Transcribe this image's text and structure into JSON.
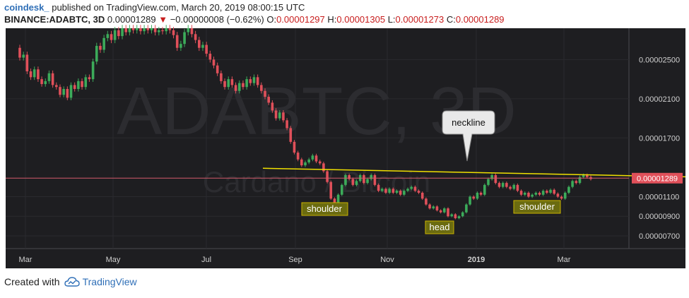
{
  "header": {
    "brand": "coindesk_",
    "published": "published on TradingView.com, March 20, 2019 08:00:15 UTC",
    "symbol": "BINANCE:ADABTC, 3D",
    "last": "0.00001289",
    "change_arrow": "▼",
    "change": "−0.00000008 (−0.62%)",
    "o_label": "O:",
    "o_value": "0.00001297",
    "h_label": "H:",
    "h_value": "0.00001305",
    "l_label": "L:",
    "l_value": "0.00001273",
    "c_label": "C:",
    "c_value": "0.00001289"
  },
  "footer": {
    "created_with": "Created with",
    "tradingview": "TradingView",
    "logo_icon": "cloud-icon"
  },
  "colors": {
    "up": "#3cab5a",
    "down": "#e0505a",
    "neckline": "#f0e000",
    "price_line": "#d45a6a",
    "label_bg": "#6b6b10",
    "label_border": "#c9b300"
  },
  "chart_data": {
    "type": "candlestick",
    "watermark": "ADABTC, 3D",
    "watermark_sub": "Cardano / Bitcoin",
    "y_ticks": [
      "0.00002500",
      "0.00002100",
      "0.00001700",
      "0.00001100",
      "0.00000900",
      "0.00000700"
    ],
    "y_range": [
      5.7e-06,
      2.82e-05
    ],
    "x_ticks": [
      "Mar",
      "May",
      "Jul",
      "Sep",
      "Nov",
      "2019",
      "Mar"
    ],
    "last_price_label": "0.00001289",
    "last_price": 1.289e-05,
    "neckline": {
      "start": [
        0.404,
        1.39e-05
      ],
      "end": [
        1.0,
        1.303e-05
      ]
    },
    "annotations": [
      {
        "text": "neckline",
        "type": "callout"
      },
      {
        "text": "shoulder",
        "type": "label"
      },
      {
        "text": "head",
        "type": "label"
      },
      {
        "text": "shoulder",
        "type": "label"
      }
    ],
    "candles": [
      [
        2.62e-05,
        2.52e-05
      ],
      [
        2.52e-05,
        2.55e-05
      ],
      [
        2.55e-05,
        2.38e-05
      ],
      [
        2.38e-05,
        2.32e-05
      ],
      [
        2.32e-05,
        2.4e-05
      ],
      [
        2.4e-05,
        2.3e-05
      ],
      [
        2.3e-05,
        2.25e-05
      ],
      [
        2.25e-05,
        2.28e-05
      ],
      [
        2.28e-05,
        2.36e-05
      ],
      [
        2.36e-05,
        2.24e-05
      ],
      [
        2.24e-05,
        2.22e-05
      ],
      [
        2.22e-05,
        2.14e-05
      ],
      [
        2.14e-05,
        2.2e-05
      ],
      [
        2.2e-05,
        2.11e-05
      ],
      [
        2.11e-05,
        2.24e-05
      ],
      [
        2.24e-05,
        2.2e-05
      ],
      [
        2.2e-05,
        2.28e-05
      ],
      [
        2.28e-05,
        2.22e-05
      ],
      [
        2.22e-05,
        2.32e-05
      ],
      [
        2.32e-05,
        2.3e-05
      ],
      [
        2.3e-05,
        2.48e-05
      ],
      [
        2.48e-05,
        2.64e-05
      ],
      [
        2.64e-05,
        2.6e-05
      ],
      [
        2.6e-05,
        2.72e-05
      ],
      [
        2.72e-05,
        2.76e-05
      ],
      [
        2.76e-05,
        2.7e-05
      ],
      [
        2.7e-05,
        2.8e-05
      ],
      [
        2.8e-05,
        2.74e-05
      ],
      [
        2.74e-05,
        2.82e-05
      ],
      [
        2.82e-05,
        2.78e-05
      ],
      [
        2.78e-05,
        2.82e-05
      ],
      [
        2.82e-05,
        2.8e-05
      ],
      [
        2.8e-05,
        2.82e-05
      ],
      [
        2.82e-05,
        2.79e-05
      ],
      [
        2.79e-05,
        2.82e-05
      ],
      [
        2.82e-05,
        2.8e-05
      ],
      [
        2.8e-05,
        2.82e-05
      ],
      [
        2.82e-05,
        2.78e-05
      ],
      [
        2.78e-05,
        2.8e-05
      ],
      [
        2.8e-05,
        2.79e-05
      ],
      [
        2.79e-05,
        2.82e-05
      ],
      [
        2.82e-05,
        2.8e-05
      ],
      [
        2.8e-05,
        2.75e-05
      ],
      [
        2.75e-05,
        2.62e-05
      ],
      [
        2.62e-05,
        2.66e-05
      ],
      [
        2.66e-05,
        2.78e-05
      ],
      [
        2.78e-05,
        2.82e-05
      ],
      [
        2.82e-05,
        2.76e-05
      ],
      [
        2.76e-05,
        2.7e-05
      ],
      [
        2.7e-05,
        2.62e-05
      ],
      [
        2.62e-05,
        2.65e-05
      ],
      [
        2.65e-05,
        2.56e-05
      ],
      [
        2.56e-05,
        2.5e-05
      ],
      [
        2.5e-05,
        2.44e-05
      ],
      [
        2.44e-05,
        2.36e-05
      ],
      [
        2.36e-05,
        2.28e-05
      ],
      [
        2.28e-05,
        2.22e-05
      ],
      [
        2.22e-05,
        2.3e-05
      ],
      [
        2.3e-05,
        2.24e-05
      ],
      [
        2.24e-05,
        2.18e-05
      ],
      [
        2.18e-05,
        2.26e-05
      ],
      [
        2.26e-05,
        2.22e-05
      ],
      [
        2.22e-05,
        2.3e-05
      ],
      [
        2.3e-05,
        2.26e-05
      ],
      [
        2.26e-05,
        2.32e-05
      ],
      [
        2.32e-05,
        2.24e-05
      ],
      [
        2.24e-05,
        2.18e-05
      ],
      [
        2.18e-05,
        2.12e-05
      ],
      [
        2.12e-05,
        2.06e-05
      ],
      [
        2.06e-05,
        1.98e-05
      ],
      [
        1.98e-05,
        1.9e-05
      ],
      [
        1.9e-05,
        1.96e-05
      ],
      [
        1.96e-05,
        1.88e-05
      ],
      [
        1.88e-05,
        1.8e-05
      ],
      [
        1.8e-05,
        1.66e-05
      ],
      [
        1.66e-05,
        1.55e-05
      ],
      [
        1.55e-05,
        1.48e-05
      ],
      [
        1.48e-05,
        1.42e-05
      ],
      [
        1.42e-05,
        1.45e-05
      ],
      [
        1.45e-05,
        1.48e-05
      ],
      [
        1.48e-05,
        1.52e-05
      ],
      [
        1.52e-05,
        1.46e-05
      ],
      [
        1.46e-05,
        1.44e-05
      ],
      [
        1.44e-05,
        1.36e-05
      ],
      [
        1.36e-05,
        1.25e-05
      ],
      [
        1.25e-05,
        1.08e-05
      ],
      [
        1.08e-05,
        1.04e-05
      ],
      [
        1.04e-05,
        1.12e-05
      ],
      [
        1.12e-05,
        1.22e-05
      ],
      [
        1.22e-05,
        1.32e-05
      ],
      [
        1.32e-05,
        1.28e-05
      ],
      [
        1.28e-05,
        1.22e-05
      ],
      [
        1.22e-05,
        1.26e-05
      ],
      [
        1.26e-05,
        1.32e-05
      ],
      [
        1.32e-05,
        1.24e-05
      ],
      [
        1.24e-05,
        1.28e-05
      ],
      [
        1.28e-05,
        1.32e-05
      ],
      [
        1.32e-05,
        1.22e-05
      ],
      [
        1.22e-05,
        1.16e-05
      ],
      [
        1.16e-05,
        1.18e-05
      ],
      [
        1.18e-05,
        1.14e-05
      ],
      [
        1.14e-05,
        1.18e-05
      ],
      [
        1.18e-05,
        1.14e-05
      ],
      [
        1.14e-05,
        1.16e-05
      ],
      [
        1.16e-05,
        1.12e-05
      ],
      [
        1.12e-05,
        1.16e-05
      ],
      [
        1.16e-05,
        1.18e-05
      ],
      [
        1.18e-05,
        1.2e-05
      ],
      [
        1.2e-05,
        1.16e-05
      ],
      [
        1.16e-05,
        1.14e-05
      ],
      [
        1.14e-05,
        1.08e-05
      ],
      [
        1.08e-05,
        1.02e-05
      ],
      [
        1.02e-05,
        9.8e-06
      ],
      [
        9.8e-06,
        1e-05
      ],
      [
        1e-05,
        9.6e-06
      ],
      [
        9.6e-06,
        9.4e-06
      ],
      [
        9.4e-06,
        9.8e-06
      ],
      [
        9.8e-06,
        9e-06
      ],
      [
        9e-06,
        9.2e-06
      ],
      [
        9.2e-06,
        8.8e-06
      ],
      [
        8.8e-06,
        9e-06
      ],
      [
        9e-06,
        9.4e-06
      ],
      [
        9.4e-06,
        1.02e-05
      ],
      [
        1.02e-05,
        1.1e-05
      ],
      [
        1.1e-05,
        1.08e-05
      ],
      [
        1.08e-05,
        1.14e-05
      ],
      [
        1.14e-05,
        1.12e-05
      ],
      [
        1.12e-05,
        1.22e-05
      ],
      [
        1.22e-05,
        1.28e-05
      ],
      [
        1.28e-05,
        1.32e-05
      ],
      [
        1.32e-05,
        1.24e-05
      ],
      [
        1.24e-05,
        1.2e-05
      ],
      [
        1.2e-05,
        1.24e-05
      ],
      [
        1.24e-05,
        1.2e-05
      ],
      [
        1.2e-05,
        1.18e-05
      ],
      [
        1.18e-05,
        1.22e-05
      ],
      [
        1.22e-05,
        1.16e-05
      ],
      [
        1.16e-05,
        1.12e-05
      ],
      [
        1.12e-05,
        1.14e-05
      ],
      [
        1.14e-05,
        1.1e-05
      ],
      [
        1.1e-05,
        1.12e-05
      ],
      [
        1.12e-05,
        1.14e-05
      ],
      [
        1.14e-05,
        1.12e-05
      ],
      [
        1.12e-05,
        1.16e-05
      ],
      [
        1.16e-05,
        1.14e-05
      ],
      [
        1.14e-05,
        1.17e-05
      ],
      [
        1.17e-05,
        1.13e-05
      ],
      [
        1.13e-05,
        1.1e-05
      ],
      [
        1.1e-05,
        1.08e-05
      ],
      [
        1.08e-05,
        1.14e-05
      ],
      [
        1.14e-05,
        1.2e-05
      ],
      [
        1.2e-05,
        1.26e-05
      ],
      [
        1.26e-05,
        1.24e-05
      ],
      [
        1.24e-05,
        1.3e-05
      ],
      [
        1.3e-05,
        1.32e-05
      ],
      [
        1.32e-05,
        1.3e-05
      ],
      [
        1.3e-05,
        1.28e-05
      ]
    ]
  }
}
